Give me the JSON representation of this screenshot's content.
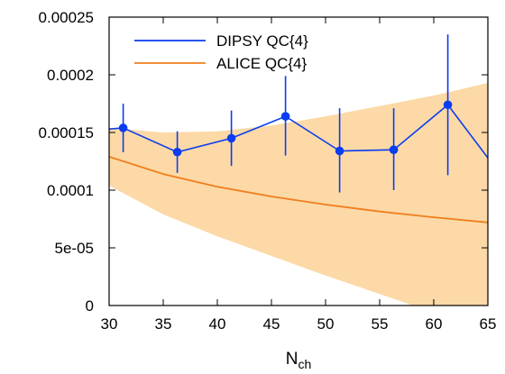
{
  "chart_data": {
    "type": "line",
    "title": "",
    "xlabel": "N",
    "xlabel_sub": "ch",
    "ylabel": "",
    "xlim": [
      30,
      65
    ],
    "ylim": [
      0,
      0.00025
    ],
    "x_ticks": [
      30,
      35,
      40,
      45,
      50,
      55,
      60,
      65
    ],
    "x_tick_labels": [
      "30",
      "35",
      "40",
      "45",
      "50",
      "55",
      "60",
      "65"
    ],
    "y_ticks": [
      0,
      5e-05,
      0.0001,
      0.00015,
      0.0002,
      0.00025
    ],
    "y_tick_labels": [
      "0",
      "5e-05",
      "0.0001",
      "0.00015",
      "0.0002",
      "0.00025"
    ],
    "grid": false,
    "legend_position": "top-left",
    "series": [
      {
        "name": "DIPSY QC{4}",
        "color": "#0a3cf0",
        "style": "line-with-points-and-error-bars",
        "x": [
          30,
          31.3,
          36.3,
          41.3,
          46.3,
          51.3,
          56.3,
          61.3,
          65
        ],
        "y": [
          0.000153,
          0.000154,
          0.000133,
          0.000145,
          0.000164,
          0.000134,
          0.000135,
          0.000174,
          0.000128
        ],
        "markers": [
          false,
          true,
          true,
          true,
          true,
          true,
          true,
          true,
          false
        ],
        "err_low": [
          null,
          0.000133,
          0.000115,
          0.000121,
          0.00013,
          9.8e-05,
          0.0001,
          0.000113,
          null
        ],
        "err_high": [
          null,
          0.000175,
          0.000151,
          0.000169,
          0.000199,
          0.000171,
          0.000171,
          0.000235,
          null
        ]
      },
      {
        "name": "ALICE QC{4}",
        "color": "#f07e1e",
        "band_color": "#fcd9a6",
        "style": "line-with-band",
        "x": [
          30,
          35,
          40,
          45,
          50,
          55,
          60,
          65
        ],
        "y": [
          0.000129,
          0.000114,
          0.000103,
          9.45e-05,
          8.75e-05,
          8.15e-05,
          7.65e-05,
          7.2e-05
        ],
        "band_low": [
          0.000104,
          7.9e-05,
          6e-05,
          4.3e-05,
          2.6e-05,
          1e-05,
          -6e-06,
          -2.1e-05
        ],
        "band_high": [
          0.000154,
          0.00015,
          0.000151,
          0.000156,
          0.000164,
          0.000173,
          0.000182,
          0.000193
        ]
      }
    ]
  }
}
